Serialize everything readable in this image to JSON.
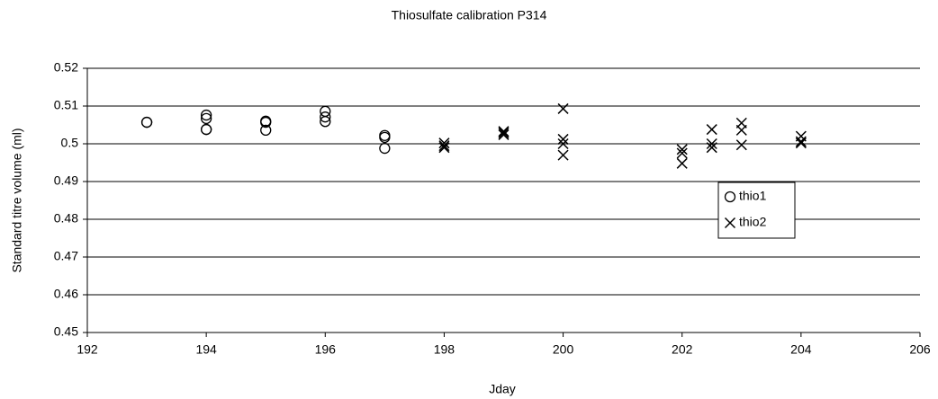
{
  "chart_data": {
    "type": "scatter",
    "title": "Thiosulfate calibration P314",
    "x_label": "Jday",
    "y_label": "Standard titre volume (ml)",
    "xlim": [
      192,
      206
    ],
    "xticks": [
      192,
      194,
      196,
      198,
      200,
      202,
      204,
      206
    ],
    "ylim": [
      0.45,
      0.52
    ],
    "yticks": [
      0.45,
      0.46,
      0.47,
      0.48,
      0.49,
      0.5,
      0.51,
      0.52
    ],
    "grid": true,
    "legend": "center-right",
    "series": [
      {
        "name": "thio1",
        "marker": "circle",
        "color": "#000000",
        "x": [
          193,
          193,
          194,
          194,
          194,
          194,
          195,
          195,
          195,
          196,
          196,
          196,
          197,
          197,
          197
        ],
        "values": [
          0.5057,
          0.5057,
          0.5076,
          0.5067,
          0.5038,
          0.5038,
          0.506,
          0.5057,
          0.5036,
          0.5086,
          0.5071,
          0.5059,
          0.5022,
          0.5017,
          0.4988
        ]
      },
      {
        "name": "thio2",
        "marker": "cross",
        "color": "#000000",
        "x": [
          198,
          198,
          198,
          199,
          199,
          199,
          200,
          200,
          200,
          200,
          202,
          202,
          202,
          202.5,
          202.5,
          202.5,
          203,
          203,
          203,
          204,
          204,
          204
        ],
        "values": [
          0.5002,
          0.4995,
          0.499,
          0.5033,
          0.5029,
          0.5024,
          0.5093,
          0.5012,
          0.5,
          0.497,
          0.4985,
          0.4975,
          0.4948,
          0.5038,
          0.5,
          0.499,
          0.5055,
          0.5036,
          0.4997,
          0.502,
          0.5006,
          0.5002
        ]
      }
    ]
  }
}
